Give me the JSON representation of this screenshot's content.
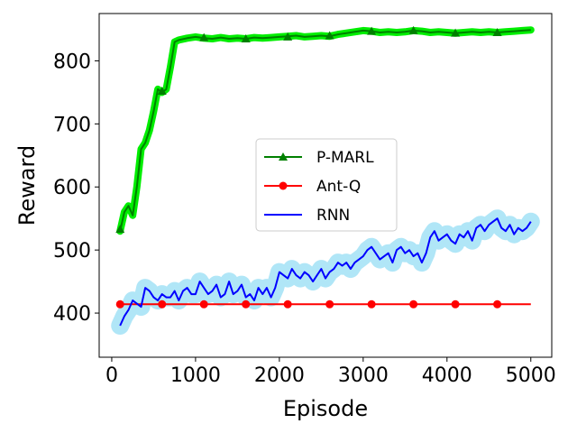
{
  "chart_data": {
    "type": "line",
    "xlabel": "Episode",
    "ylabel": "Reward",
    "xlim": [
      -150,
      5250
    ],
    "ylim": [
      330,
      875
    ],
    "xticks": [
      0,
      1000,
      2000,
      3000,
      4000,
      5000
    ],
    "yticks": [
      400,
      500,
      600,
      700,
      800
    ],
    "grid": false,
    "legend_position": "center-right",
    "series": [
      {
        "name": "P-MARL",
        "color": "#008000",
        "band_color": "#00ee00",
        "marker": "triangle",
        "band_width": 8,
        "x": [
          100,
          150,
          200,
          250,
          300,
          350,
          400,
          450,
          500,
          550,
          600,
          650,
          700,
          750,
          800,
          900,
          1000,
          1100,
          1200,
          1300,
          1400,
          1500,
          1600,
          1700,
          1800,
          1900,
          2000,
          2100,
          2200,
          2300,
          2400,
          2500,
          2600,
          2700,
          2800,
          2900,
          3000,
          3100,
          3200,
          3300,
          3400,
          3500,
          3600,
          3700,
          3800,
          3900,
          4000,
          4100,
          4200,
          4300,
          4400,
          4500,
          4600,
          4700,
          4800,
          4900,
          5000
        ],
        "y": [
          530,
          560,
          570,
          555,
          600,
          660,
          670,
          690,
          720,
          755,
          750,
          755,
          790,
          830,
          833,
          836,
          838,
          836,
          835,
          837,
          835,
          836,
          835,
          837,
          836,
          837,
          838,
          839,
          840,
          838,
          839,
          840,
          839,
          842,
          844,
          846,
          848,
          847,
          845,
          846,
          845,
          846,
          848,
          847,
          845,
          846,
          845,
          844,
          845,
          846,
          845,
          846,
          845,
          846,
          847,
          848,
          849
        ],
        "marker_x": [
          100,
          600,
          1100,
          1600,
          2100,
          2600,
          3100,
          3600,
          4100,
          4600
        ],
        "marker_y": [
          533,
          752,
          837,
          835,
          838,
          840,
          847,
          848,
          844,
          845
        ]
      },
      {
        "name": "Ant-Q",
        "color": "#ff0000",
        "marker": "circle",
        "x": [
          100,
          5000
        ],
        "y": [
          414,
          414
        ],
        "marker_x": [
          100,
          600,
          1100,
          1600,
          2100,
          2600,
          3100,
          3600,
          4100,
          4600
        ],
        "marker_y": [
          414,
          414,
          414,
          414,
          414,
          414,
          414,
          414,
          414,
          414
        ]
      },
      {
        "name": "RNN",
        "color": "#0000ff",
        "band_color": "#b0e6f7",
        "band_width": 20,
        "x": [
          100,
          150,
          200,
          250,
          300,
          350,
          400,
          450,
          500,
          550,
          600,
          650,
          700,
          750,
          800,
          850,
          900,
          950,
          1000,
          1050,
          1100,
          1150,
          1200,
          1250,
          1300,
          1350,
          1400,
          1450,
          1500,
          1550,
          1600,
          1650,
          1700,
          1750,
          1800,
          1850,
          1900,
          1950,
          2000,
          2050,
          2100,
          2150,
          2200,
          2250,
          2300,
          2350,
          2400,
          2450,
          2500,
          2550,
          2600,
          2650,
          2700,
          2750,
          2800,
          2850,
          2900,
          2950,
          3000,
          3050,
          3100,
          3150,
          3200,
          3250,
          3300,
          3350,
          3400,
          3450,
          3500,
          3550,
          3600,
          3650,
          3700,
          3750,
          3800,
          3850,
          3900,
          3950,
          4000,
          4050,
          4100,
          4150,
          4200,
          4250,
          4300,
          4350,
          4400,
          4450,
          4500,
          4550,
          4600,
          4650,
          4700,
          4750,
          4800,
          4850,
          4900,
          4950,
          5000
        ],
        "y": [
          380,
          395,
          405,
          420,
          415,
          410,
          440,
          435,
          425,
          420,
          430,
          425,
          425,
          435,
          420,
          435,
          440,
          430,
          430,
          450,
          440,
          430,
          435,
          445,
          425,
          430,
          450,
          430,
          435,
          445,
          425,
          430,
          420,
          440,
          430,
          440,
          425,
          440,
          465,
          460,
          455,
          470,
          460,
          455,
          465,
          460,
          450,
          460,
          470,
          455,
          465,
          470,
          480,
          475,
          480,
          470,
          480,
          485,
          490,
          500,
          505,
          495,
          485,
          490,
          495,
          480,
          500,
          505,
          495,
          500,
          490,
          495,
          480,
          495,
          520,
          530,
          515,
          520,
          525,
          515,
          510,
          525,
          520,
          530,
          515,
          535,
          540,
          530,
          540,
          545,
          550,
          535,
          530,
          540,
          525,
          535,
          530,
          535,
          545
        ]
      }
    ]
  }
}
